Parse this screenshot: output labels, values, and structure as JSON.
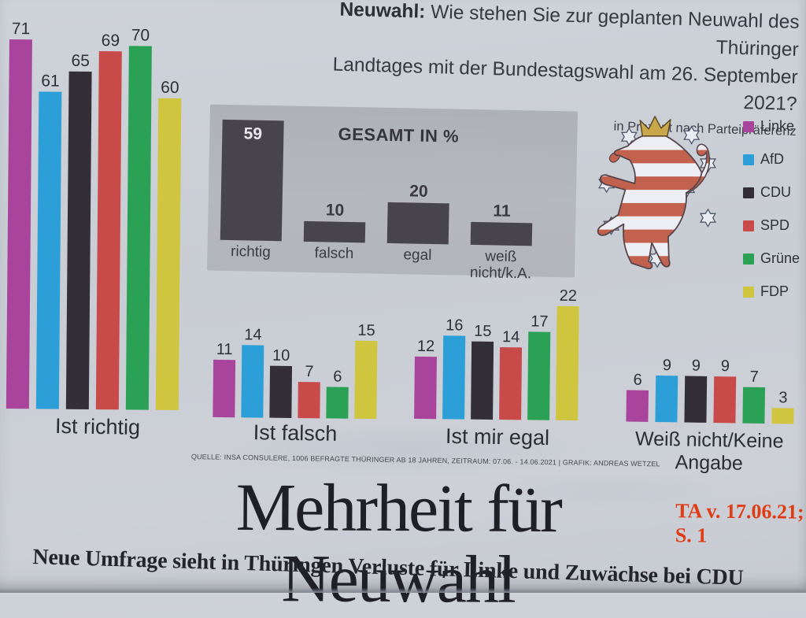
{
  "header": {
    "prefix": "Neuwahl:",
    "line1": " Wie stehen Sie zur geplanten Neuwahl des Thüringer",
    "line2": "Landtages mit der Bundestagswahl am 26. September 2021?",
    "note": "in Prozent nach Parteipräferenz"
  },
  "chart_data": {
    "type": "bar",
    "title": "Neuwahl: Wie stehen Sie zur geplanten Neuwahl des Thüringer Landtages mit der Bundestagswahl am 26. September 2021?",
    "unit_note": "in Prozent nach Parteipräferenz",
    "ylim": [
      0,
      75
    ],
    "grid": false,
    "legend_position": "right",
    "parties": [
      "Linke",
      "AfD",
      "CDU",
      "SPD",
      "Grüne",
      "FDP"
    ],
    "party_colors": [
      "#a8449c",
      "#2d9fd8",
      "#332e38",
      "#c84b49",
      "#2aa155",
      "#d0c53e"
    ],
    "groups": [
      {
        "label": "Ist richtig",
        "values": [
          71,
          61,
          65,
          69,
          70,
          60
        ]
      },
      {
        "label": "Ist falsch",
        "values": [
          11,
          14,
          10,
          7,
          6,
          15
        ]
      },
      {
        "label": "Ist mir egal",
        "values": [
          12,
          16,
          15,
          14,
          17,
          22
        ]
      },
      {
        "label": "Weiß nicht/Keine Angabe",
        "values": [
          6,
          9,
          9,
          9,
          7,
          3
        ]
      }
    ],
    "overall": {
      "title": "GESAMT IN %",
      "categories": [
        "richtig",
        "falsch",
        "egal",
        "weiß nicht/k.A."
      ],
      "values": [
        59,
        10,
        20,
        11
      ],
      "bar_color": "#47444c"
    }
  },
  "source": "QUELLE: INSA CONSULERE, 1006 BEFRAGTE THÜRINGER AB 18 JAHREN, ZEITRAUM: 07.06. - 14.06.2021 | GRAFIK: ANDREAS WETZEL",
  "headline": "Mehrheit für Neuwahl",
  "annotation": {
    "line1": "TA v. 17.06.21;",
    "line2": "S. 1",
    "color": "#e03c16"
  },
  "subheadline": "Neue Umfrage sieht in Thüringen Verluste für Linke und Zuwächse bei CDU",
  "coat_of_arms": "thuringia-coat-of-arms"
}
